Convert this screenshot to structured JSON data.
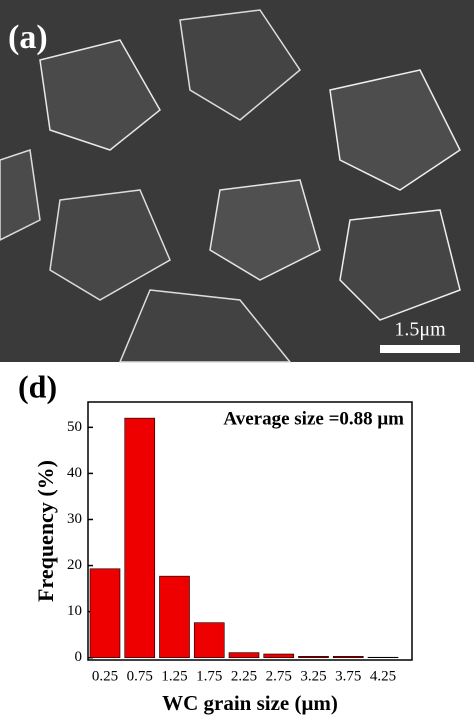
{
  "image": {
    "label": "(a)",
    "scale_bar": "1.5μm"
  },
  "chart_data": {
    "type": "bar",
    "panel_label": "(d)",
    "annotation": "Average size =0.88 μm",
    "x_label": "WC grain size (μm)",
    "y_label": "Frequency (%)",
    "categories": [
      "0.25",
      "0.75",
      "1.25",
      "1.75",
      "2.25",
      "2.75",
      "3.25",
      "3.75",
      "4.25"
    ],
    "values": [
      19.3,
      52,
      17.7,
      7.6,
      1.1,
      0.8,
      0.3,
      0.3,
      0.1
    ],
    "color": "#ee0000",
    "ylim": [
      -0.5,
      55.5
    ],
    "yticks": [
      0,
      10,
      20,
      30,
      40,
      50
    ]
  }
}
